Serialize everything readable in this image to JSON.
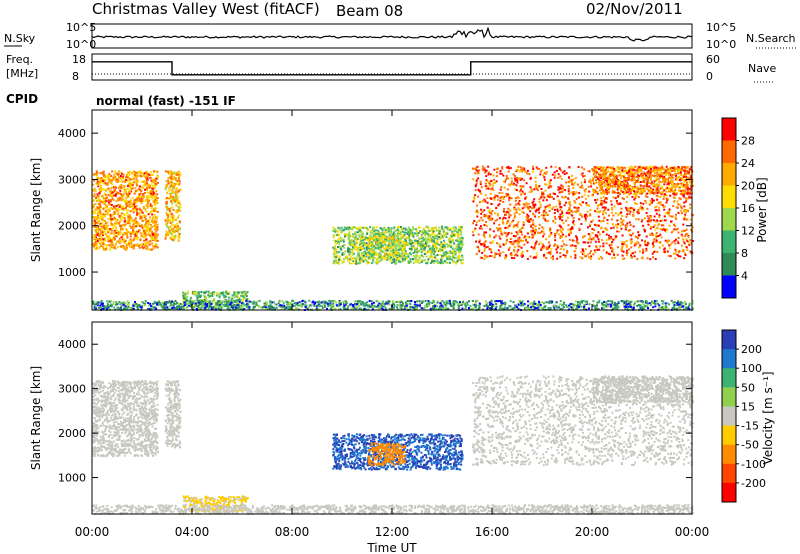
{
  "header": {
    "title": "Christmas Valley West (fitACF)",
    "beam": "Beam 08",
    "date": "02/Nov/2011"
  },
  "noise_panel": {
    "left_label": "N.Sky",
    "right_label": "N.Search",
    "left_ticks": [
      "10^5",
      "10^0"
    ],
    "right_ticks": [
      "10^5",
      "10^0"
    ]
  },
  "freq_panel": {
    "left_label_1": "Freq.",
    "left_label_2": "[MHz]",
    "right_label": "Nave",
    "left_ticks": [
      "18",
      "8"
    ],
    "right_ticks": [
      "60",
      "0"
    ],
    "freq_steps": [
      {
        "t": 0,
        "v": 15
      },
      {
        "t": 3.2,
        "v": 10
      },
      {
        "t": 15.15,
        "v": 15
      },
      {
        "t": 24,
        "v": 15
      }
    ],
    "nave_level": 7
  },
  "cpid": {
    "label": "CPID",
    "value": "normal (fast) -151 IF"
  },
  "power_panel": {
    "ylabel": "Slant Range [km]",
    "yticks": [
      "4000",
      "3000",
      "2000",
      "1000"
    ],
    "colorbar_label": "Power [dB]",
    "colorbar_ticks": [
      "28",
      "24",
      "20",
      "16",
      "12",
      "8",
      "4"
    ],
    "colors": [
      "#ff0000",
      "#ff6a00",
      "#ffaa00",
      "#ffdd00",
      "#9dd94a",
      "#3cb371",
      "#2e8b57",
      "#0000ff"
    ]
  },
  "velocity_panel": {
    "ylabel": "Slant Range [km]",
    "yticks": [
      "4000",
      "3000",
      "2000",
      "1000"
    ],
    "colorbar_label": "Velocity [m s⁻¹]",
    "colorbar_ticks": [
      "200",
      "100",
      "50",
      "15",
      "-15",
      "-50",
      "-100",
      "-200"
    ],
    "colors": [
      "#2a3fb5",
      "#1f77d0",
      "#3cb371",
      "#8fd14f",
      "#c8c8c0",
      "#ffcc00",
      "#ff8c00",
      "#ff4500",
      "#ff0000"
    ]
  },
  "xaxis": {
    "label": "Time UT",
    "ticks": [
      "00:00",
      "04:00",
      "08:00",
      "12:00",
      "16:00",
      "20:00",
      "00:00"
    ]
  },
  "chart_data": {
    "type": "heatmap",
    "title": "Christmas Valley West (fitACF)",
    "subtitle": "Beam 08 02/Nov/2011",
    "xlabel": "Time UT",
    "ylabel": "Slant Range [km]",
    "xlim": [
      0,
      24
    ],
    "ylim": [
      180,
      4500
    ],
    "scatter_regions": [
      {
        "t": [
          0.0,
          2.6
        ],
        "r": [
          1500,
          3200
        ],
        "power": 22,
        "velocity": 0
      },
      {
        "t": [
          2.9,
          3.5
        ],
        "r": [
          1700,
          3200
        ],
        "power": 20,
        "velocity": 0
      },
      {
        "t": [
          3.6,
          6.2
        ],
        "r": [
          250,
          600
        ],
        "power": 10,
        "velocity": -20
      },
      {
        "t": [
          9.6,
          14.8
        ],
        "r": [
          1200,
          2000
        ],
        "power": 12,
        "velocity": 150
      },
      {
        "t": [
          11.0,
          12.5
        ],
        "r": [
          1300,
          1800
        ],
        "power": 14,
        "velocity": -60
      },
      {
        "t": [
          15.2,
          24.0
        ],
        "r": [
          1300,
          3300
        ],
        "power": 26,
        "velocity": 0
      },
      {
        "t": [
          20.0,
          24.0
        ],
        "r": [
          2700,
          3300
        ],
        "power": 24,
        "velocity": 0
      },
      {
        "t": [
          0.0,
          24.0
        ],
        "r": [
          200,
          400
        ],
        "power": 6,
        "velocity": 0
      }
    ]
  }
}
